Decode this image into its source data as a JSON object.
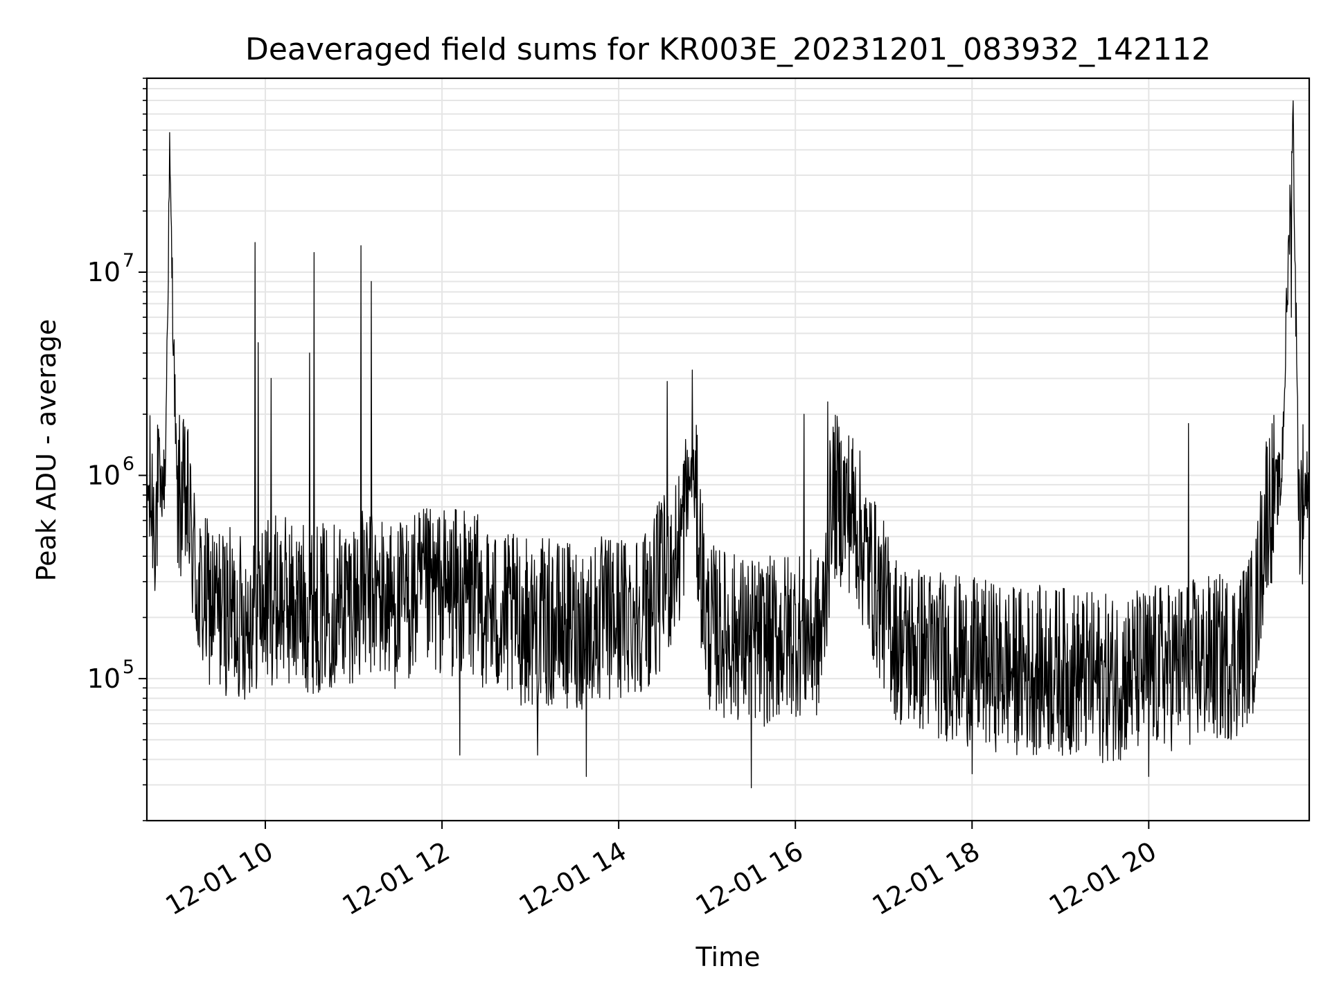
{
  "chart_data": {
    "type": "line",
    "title": "Deaveraged field sums for KR003E_20231201_083932_142112",
    "xlabel": "Time",
    "ylabel": "Peak ADU - average",
    "x_ticks": [
      "12-01 10",
      "12-01 12",
      "12-01 14",
      "12-01 16",
      "12-01 18",
      "12-01 20"
    ],
    "xlim": [
      "2023-12-01 08:39:32",
      "2023-12-01 21:49"
    ],
    "y_scale": "log",
    "ylim": [
      20000,
      90000000
    ],
    "y_ticks": [
      {
        "base": "10",
        "exp": "5",
        "value": 100000
      },
      {
        "base": "10",
        "exp": "6",
        "value": 1000000
      },
      {
        "base": "10",
        "exp": "7",
        "value": 10000000
      }
    ],
    "grid": true,
    "line_color": "#000000",
    "grid_color": "#e5e5e5",
    "series": [
      {
        "name": "",
        "x": [
          "2023-12-01 08:39",
          "2023-12-01 08:45",
          "2023-12-01 08:52",
          "2023-12-01 08:55",
          "2023-12-01 09:00",
          "2023-12-01 09:07",
          "2023-12-01 09:15",
          "2023-12-01 09:30",
          "2023-12-01 09:45",
          "2023-12-01 09:55",
          "2023-12-01 10:10",
          "2023-12-01 10:20",
          "2023-12-01 10:35",
          "2023-12-01 10:50",
          "2023-12-01 11:10",
          "2023-12-01 11:30",
          "2023-12-01 11:45",
          "2023-12-01 12:00",
          "2023-12-01 12:20",
          "2023-12-01 12:40",
          "2023-12-01 13:00",
          "2023-12-01 13:30",
          "2023-12-01 14:00",
          "2023-12-01 14:20",
          "2023-12-01 14:40",
          "2023-12-01 14:50",
          "2023-12-01 15:00",
          "2023-12-01 15:20",
          "2023-12-01 15:40",
          "2023-12-01 16:00",
          "2023-12-01 16:18",
          "2023-12-01 16:25",
          "2023-12-01 16:40",
          "2023-12-01 16:50",
          "2023-12-01 17:10",
          "2023-12-01 17:40",
          "2023-12-01 18:00",
          "2023-12-01 18:30",
          "2023-12-01 19:00",
          "2023-12-01 19:30",
          "2023-12-01 20:00",
          "2023-12-01 20:30",
          "2023-12-01 21:00",
          "2023-12-01 21:12",
          "2023-12-01 21:20",
          "2023-12-01 21:30",
          "2023-12-01 21:38",
          "2023-12-01 21:42",
          "2023-12-01 21:49"
        ],
        "y": [
          900000,
          650000,
          1000000,
          35000000,
          800000,
          700000,
          250000,
          220000,
          200000,
          230000,
          250000,
          230000,
          220000,
          240000,
          260000,
          230000,
          260000,
          270000,
          260000,
          200000,
          190000,
          180000,
          200000,
          230000,
          400000,
          1100000,
          180000,
          160000,
          150000,
          170000,
          160000,
          800000,
          650000,
          350000,
          150000,
          130000,
          120000,
          110000,
          110000,
          100000,
          110000,
          120000,
          130000,
          180000,
          700000,
          900000,
          60000000,
          650000,
          1000000
        ]
      }
    ],
    "spikes": [
      {
        "x": "2023-12-01 09:53",
        "y": 14000000
      },
      {
        "x": "2023-12-01 09:55",
        "y": 4500000
      },
      {
        "x": "2023-12-01 10:04",
        "y": 3000000
      },
      {
        "x": "2023-12-01 10:30",
        "y": 4000000
      },
      {
        "x": "2023-12-01 10:33",
        "y": 12500000
      },
      {
        "x": "2023-12-01 11:05",
        "y": 13500000
      },
      {
        "x": "2023-12-01 11:12",
        "y": 9000000
      },
      {
        "x": "2023-12-01 14:33",
        "y": 2900000
      },
      {
        "x": "2023-12-01 14:50",
        "y": 3300000
      },
      {
        "x": "2023-12-01 16:06",
        "y": 2000000
      },
      {
        "x": "2023-12-01 16:22",
        "y": 2300000
      },
      {
        "x": "2023-12-01 20:27",
        "y": 1800000
      },
      {
        "x": "2023-12-01 21:37",
        "y": 6000000
      }
    ],
    "dips": [
      {
        "x": "2023-12-01 12:12",
        "y": 42000
      },
      {
        "x": "2023-12-01 13:05",
        "y": 42000
      },
      {
        "x": "2023-12-01 13:38",
        "y": 33000
      },
      {
        "x": "2023-12-01 15:30",
        "y": 29000
      },
      {
        "x": "2023-12-01 18:00",
        "y": 34000
      },
      {
        "x": "2023-12-01 20:00",
        "y": 33000
      }
    ]
  }
}
